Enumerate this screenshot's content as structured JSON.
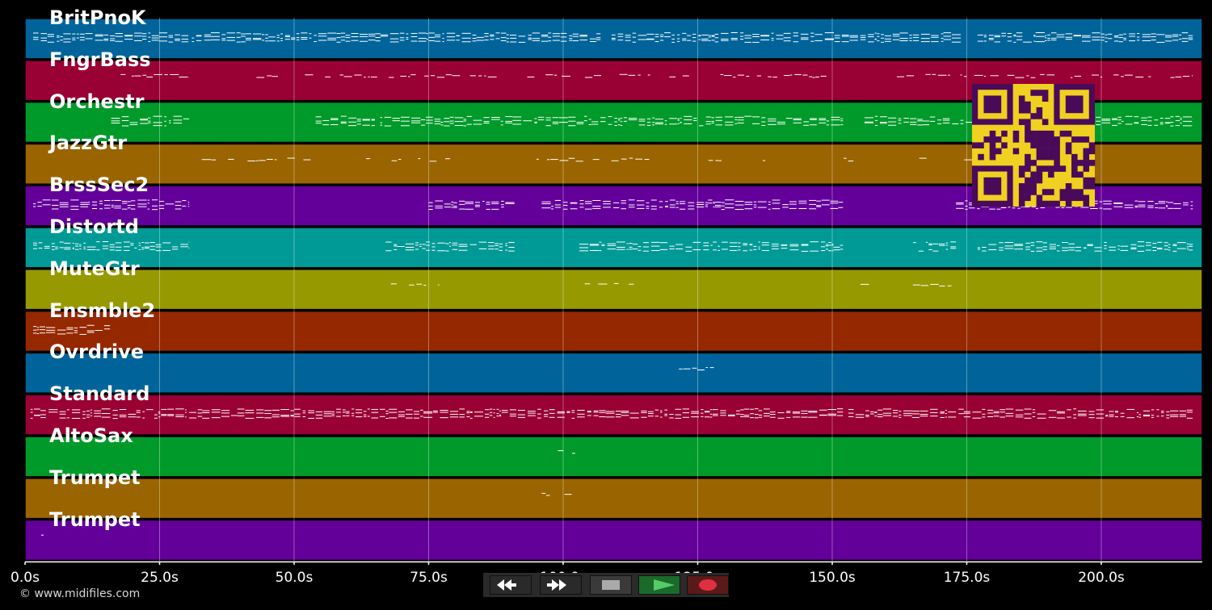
{
  "tracks": [
    {
      "name": "BritPnoK",
      "color": "#00649a",
      "density": 0.95,
      "segments": [
        [
          1.5,
          30.5
        ],
        [
          31,
          107
        ],
        [
          109,
          174
        ],
        [
          177,
          217
        ]
      ]
    },
    {
      "name": "FngrBass",
      "color": "#990033",
      "density": 0.6,
      "segments": [
        [
          15,
          30.5
        ],
        [
          43,
          47
        ],
        [
          52,
          152
        ],
        [
          162,
          217
        ]
      ]
    },
    {
      "name": "Orchestr",
      "color": "#009a2a",
      "density": 0.85,
      "segments": [
        [
          16,
          30.5
        ],
        [
          54,
          65
        ],
        [
          66,
          152
        ],
        [
          156,
          177
        ],
        [
          177,
          217
        ]
      ]
    },
    {
      "name": "JazzGtr",
      "color": "#9a6400",
      "density": 0.4,
      "segments": [
        [
          30,
          79
        ],
        [
          92,
          116
        ],
        [
          127,
          141
        ],
        [
          151,
          177
        ]
      ]
    },
    {
      "name": "BrssSec2",
      "color": "#64009a",
      "density": 0.9,
      "segments": [
        [
          1.5,
          30.5
        ],
        [
          75,
          91
        ],
        [
          96,
          152
        ],
        [
          173,
          217
        ]
      ]
    },
    {
      "name": "Distortd",
      "color": "#009a96",
      "density": 0.85,
      "segments": [
        [
          1.5,
          30.5
        ],
        [
          67,
          91
        ],
        [
          103,
          152
        ],
        [
          165,
          173
        ],
        [
          177,
          217
        ]
      ]
    },
    {
      "name": "MuteGtr",
      "color": "#969a00",
      "density": 0.5,
      "segments": [
        [
          67,
          77
        ],
        [
          104,
          114
        ],
        [
          152,
          158
        ],
        [
          165,
          174
        ]
      ]
    },
    {
      "name": "Ensmble2",
      "color": "#962800",
      "density": 0.9,
      "segments": [
        [
          1.5,
          16
        ]
      ]
    },
    {
      "name": "Ovrdrive",
      "color": "#00649a",
      "density": 0.6,
      "segments": [
        [
          121.5,
          128
        ]
      ]
    },
    {
      "name": "Standard",
      "color": "#990033",
      "density": 0.95,
      "segments": [
        [
          1,
          30
        ],
        [
          30.5,
          152
        ],
        [
          153,
          217
        ]
      ]
    },
    {
      "name": "AltoSax",
      "color": "#009a2a",
      "density": 0.5,
      "segments": [
        [
          99,
          104
        ]
      ]
    },
    {
      "name": "Trumpet",
      "color": "#9a6400",
      "density": 0.5,
      "segments": [
        [
          96,
          104
        ]
      ]
    },
    {
      "name": "Trumpet",
      "color": "#64009a",
      "density": 0.5,
      "segments": [
        [
          3,
          6
        ]
      ]
    }
  ],
  "timeline": {
    "max_seconds": 219,
    "ticks": [
      {
        "t": 0,
        "label": "0.0s"
      },
      {
        "t": 25,
        "label": "25.0s"
      },
      {
        "t": 50,
        "label": "50.0s"
      },
      {
        "t": 75,
        "label": "75.0s"
      },
      {
        "t": 100,
        "label": "100.0s"
      },
      {
        "t": 125,
        "label": "125.0s"
      },
      {
        "t": 150,
        "label": "150.0s"
      },
      {
        "t": 175,
        "label": "175.0s"
      },
      {
        "t": 200,
        "label": "200.0s"
      }
    ]
  },
  "transport": {
    "buttons": [
      {
        "name": "rewind-button",
        "icon": "rewind-icon",
        "color": "#111111"
      },
      {
        "name": "fast-forward-button",
        "icon": "fast-forward-icon",
        "color": "#111111"
      },
      {
        "name": "stop-button",
        "icon": "stop-icon",
        "color": "#3a3a3a"
      },
      {
        "name": "play-button",
        "icon": "play-icon",
        "color": "#1a6a2a"
      },
      {
        "name": "record-button",
        "icon": "record-icon",
        "color": "#5a1a1a"
      }
    ]
  },
  "qr_code": {
    "icon": "qr-code-icon",
    "fg": "#4a0a5a",
    "bg": "#f0d020"
  },
  "footer": {
    "copyright": "© www.midifiles.com"
  }
}
